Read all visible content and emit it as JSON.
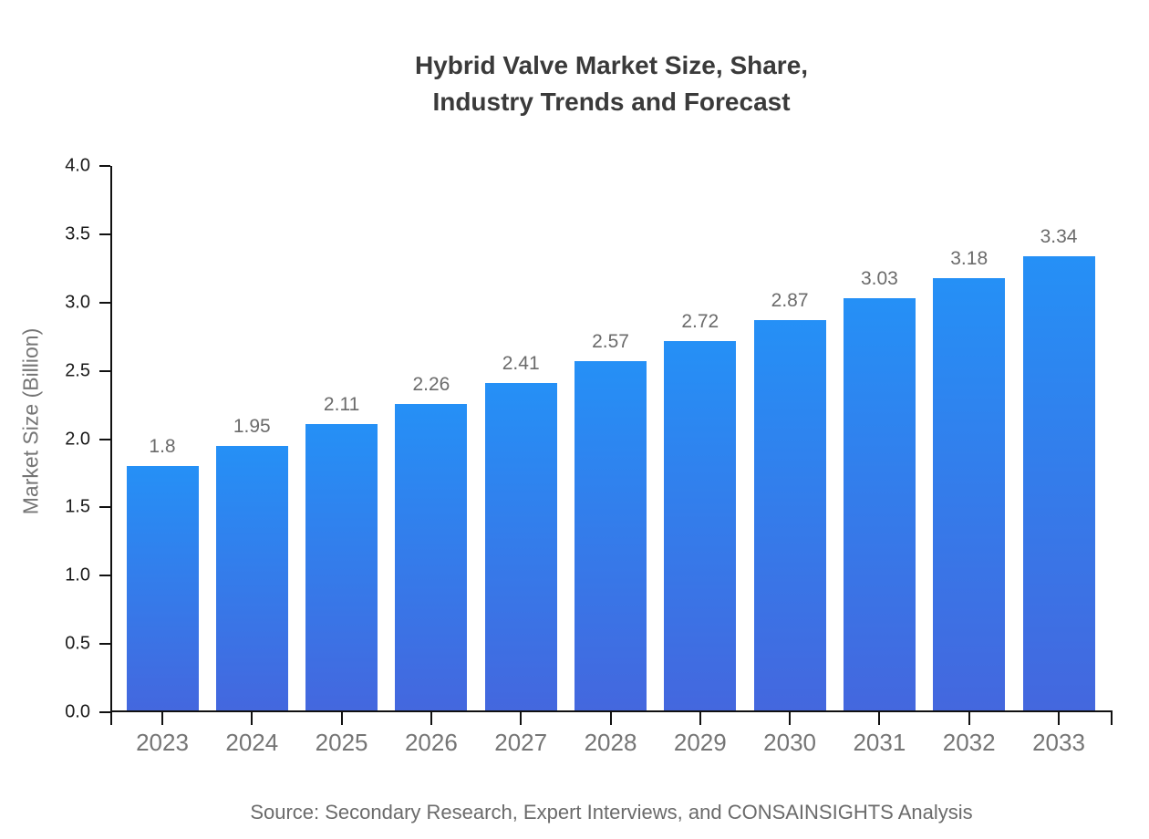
{
  "title": {
    "line1": "Hybrid Valve Market Size, Share,",
    "line2": "Industry Trends and Forecast"
  },
  "source": "Source: Secondary Research, Expert Interviews, and CONSAINSIGHTS Analysis",
  "chart_data": {
    "type": "bar",
    "title": "Hybrid Valve Market Size, Share, Industry Trends and Forecast",
    "categories": [
      "2023",
      "2024",
      "2025",
      "2026",
      "2027",
      "2028",
      "2029",
      "2030",
      "2031",
      "2032",
      "2033"
    ],
    "values": [
      1.8,
      1.95,
      2.11,
      2.26,
      2.41,
      2.57,
      2.72,
      2.87,
      3.03,
      3.18,
      3.34
    ],
    "value_labels": [
      "1.8",
      "1.95",
      "2.11",
      "2.26",
      "2.41",
      "2.57",
      "2.72",
      "2.87",
      "3.03",
      "3.18",
      "3.34"
    ],
    "xlabel": "",
    "ylabel": "Market Size (Billion)",
    "ylim": [
      0.0,
      4.0
    ],
    "yticks": [
      0.0,
      0.5,
      1.0,
      1.5,
      2.0,
      2.5,
      3.0,
      3.5,
      4.0
    ],
    "grid": false,
    "legend": "none",
    "colors": {
      "bar_gradient_top": "#2590F6",
      "bar_gradient_bottom": "#4467DE",
      "axis": "#111111",
      "y_tick_label": "#1a1a1a",
      "x_tick_label": "#757575",
      "value_label": "#6b6b6b",
      "title": "#3a3a3a",
      "source": "#6b6b6b",
      "ylabel": "#757575"
    }
  }
}
